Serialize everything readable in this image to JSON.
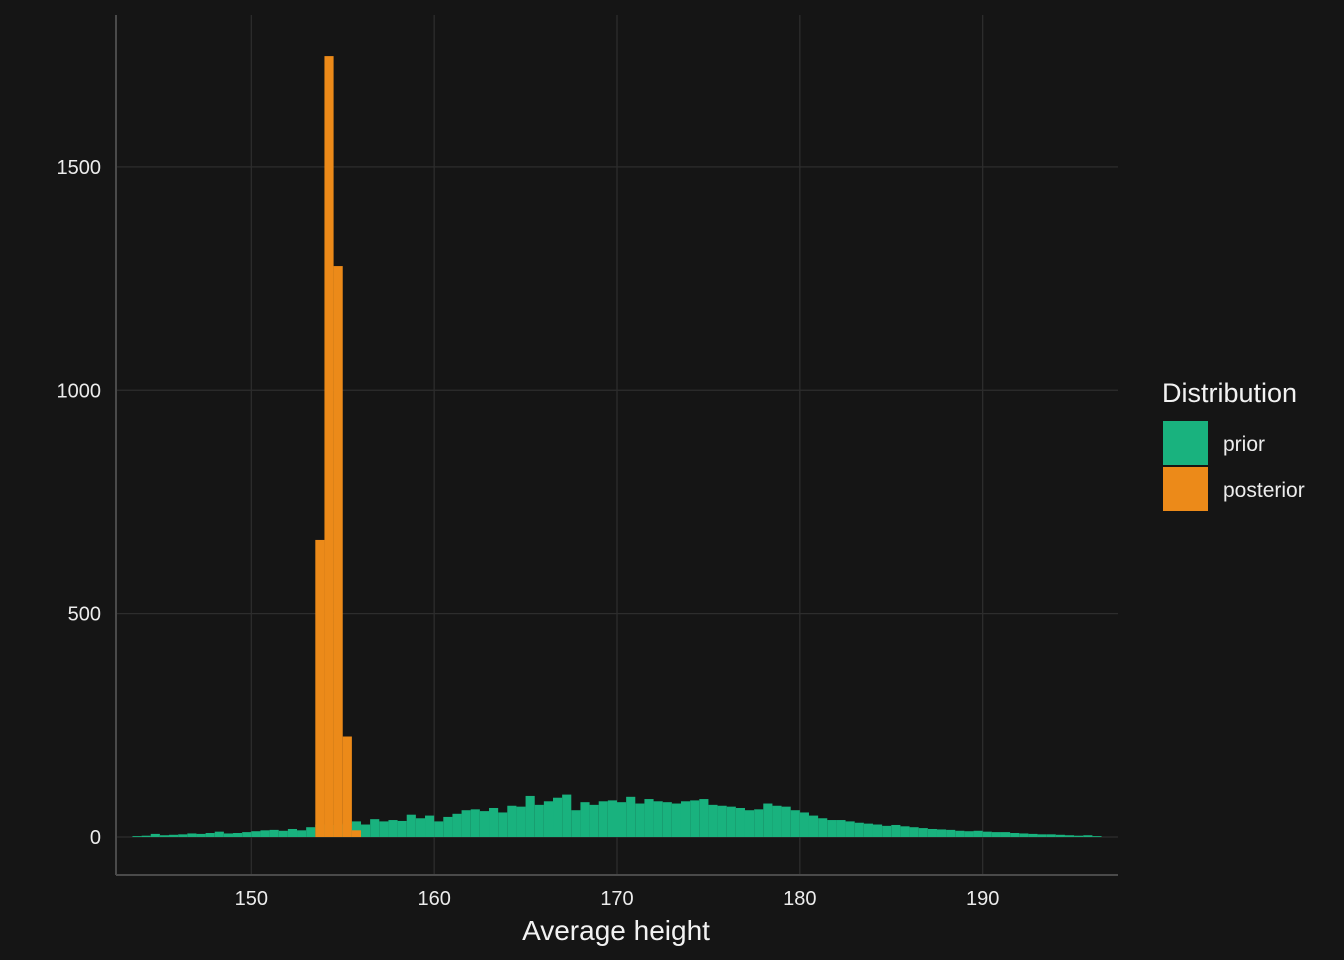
{
  "chart_data": {
    "type": "bar",
    "subtype": "overlaid-histogram",
    "xlabel": "Average height",
    "ylabel": "",
    "xlim": [
      142.6,
      197.4
    ],
    "ylim": [
      -85,
      1840
    ],
    "x_ticks": [
      150,
      160,
      170,
      180,
      190
    ],
    "y_ticks": [
      0,
      500,
      1000,
      1500
    ],
    "grid": true,
    "legend": {
      "title": "Distribution",
      "position": "right"
    },
    "bin_width": 0.5,
    "series": [
      {
        "name": "prior",
        "color": "#19B27E",
        "bin_starts": [
          143.5,
          144,
          144.5,
          145,
          145.5,
          146,
          146.5,
          147,
          147.5,
          148,
          148.5,
          149,
          149.5,
          150,
          150.5,
          151,
          151.5,
          152,
          152.5,
          153,
          153.5,
          154,
          154.5,
          155,
          155.5,
          156,
          156.5,
          157,
          157.5,
          158,
          158.5,
          159,
          159.5,
          160,
          160.5,
          161,
          161.5,
          162,
          162.5,
          163,
          163.5,
          164,
          164.5,
          165,
          165.5,
          166,
          166.5,
          167,
          167.5,
          168,
          168.5,
          169,
          169.5,
          170,
          170.5,
          171,
          171.5,
          172,
          172.5,
          173,
          173.5,
          174,
          174.5,
          175,
          175.5,
          176,
          176.5,
          177,
          177.5,
          178,
          178.5,
          179,
          179.5,
          180,
          180.5,
          181,
          181.5,
          182,
          182.5,
          183,
          183.5,
          184,
          184.5,
          185,
          185.5,
          186,
          186.5,
          187,
          187.5,
          188,
          188.5,
          189,
          189.5,
          190,
          190.5,
          191,
          191.5,
          192,
          192.5,
          193,
          193.5,
          194,
          194.5,
          195,
          195.5,
          196
        ],
        "values": [
          2,
          3,
          7,
          4,
          5,
          6,
          8,
          7,
          9,
          12,
          8,
          9,
          11,
          13,
          15,
          16,
          14,
          18,
          15,
          22,
          28,
          25,
          27,
          30,
          35,
          28,
          40,
          35,
          38,
          36,
          50,
          42,
          48,
          35,
          45,
          52,
          60,
          62,
          58,
          65,
          55,
          70,
          68,
          92,
          72,
          80,
          88,
          95,
          60,
          78,
          72,
          80,
          82,
          78,
          90,
          75,
          85,
          80,
          78,
          75,
          80,
          82,
          85,
          72,
          70,
          68,
          65,
          60,
          62,
          75,
          70,
          68,
          60,
          55,
          48,
          42,
          38,
          38,
          35,
          32,
          30,
          28,
          25,
          27,
          24,
          22,
          20,
          18,
          17,
          16,
          14,
          13,
          14,
          12,
          11,
          11,
          9,
          8,
          7,
          6,
          6,
          5,
          4,
          3,
          4,
          2
        ]
      },
      {
        "name": "posterior",
        "color": "#EC8A19",
        "bin_starts": [
          153.5,
          154,
          154.5,
          155,
          155.5
        ],
        "values": [
          665,
          1748,
          1278,
          225,
          15
        ]
      }
    ]
  }
}
